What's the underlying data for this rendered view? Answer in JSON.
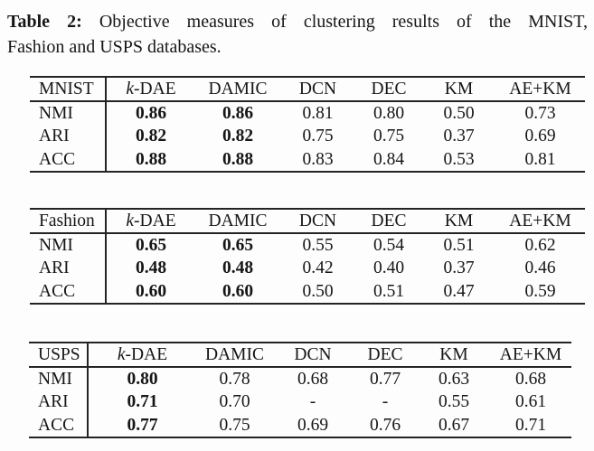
{
  "caption": {
    "label": "Table 2:",
    "line1": "Objective measures of clustering results of the MNIST,",
    "line2": "Fashion and USPS databases."
  },
  "columns": [
    "k-DAE",
    "DAMIC",
    "DCN",
    "DEC",
    "KM",
    "AE+KM"
  ],
  "metrics": [
    "NMI",
    "ARI",
    "ACC"
  ],
  "tables": [
    {
      "dataset": "MNIST",
      "rows": [
        {
          "metric": "NMI",
          "values": [
            "0.86",
            "0.86",
            "0.81",
            "0.80",
            "0.50",
            "0.73"
          ],
          "bold": [
            true,
            true,
            false,
            false,
            false,
            false
          ]
        },
        {
          "metric": "ARI",
          "values": [
            "0.82",
            "0.82",
            "0.75",
            "0.75",
            "0.37",
            "0.69"
          ],
          "bold": [
            true,
            true,
            false,
            false,
            false,
            false
          ]
        },
        {
          "metric": "ACC",
          "values": [
            "0.88",
            "0.88",
            "0.83",
            "0.84",
            "0.53",
            "0.81"
          ],
          "bold": [
            true,
            true,
            false,
            false,
            false,
            false
          ]
        }
      ]
    },
    {
      "dataset": "Fashion",
      "rows": [
        {
          "metric": "NMI",
          "values": [
            "0.65",
            "0.65",
            "0.55",
            "0.54",
            "0.51",
            "0.62"
          ],
          "bold": [
            true,
            true,
            false,
            false,
            false,
            false
          ]
        },
        {
          "metric": "ARI",
          "values": [
            "0.48",
            "0.48",
            "0.42",
            "0.40",
            "0.37",
            "0.46"
          ],
          "bold": [
            true,
            true,
            false,
            false,
            false,
            false
          ]
        },
        {
          "metric": "ACC",
          "values": [
            "0.60",
            "0.60",
            "0.50",
            "0.51",
            "0.47",
            "0.59"
          ],
          "bold": [
            true,
            true,
            false,
            false,
            false,
            false
          ]
        }
      ]
    },
    {
      "dataset": "USPS",
      "rows": [
        {
          "metric": "NMI",
          "values": [
            "0.80",
            "0.78",
            "0.68",
            "0.77",
            "0.63",
            "0.68"
          ],
          "bold": [
            true,
            false,
            false,
            false,
            false,
            false
          ]
        },
        {
          "metric": "ARI",
          "values": [
            "0.71",
            "0.70",
            "-",
            "-",
            "0.55",
            "0.61"
          ],
          "bold": [
            true,
            false,
            false,
            false,
            false,
            false
          ]
        },
        {
          "metric": "ACC",
          "values": [
            "0.77",
            "0.75",
            "0.69",
            "0.76",
            "0.67",
            "0.71"
          ],
          "bold": [
            true,
            false,
            false,
            false,
            false,
            false
          ]
        }
      ]
    }
  ],
  "colors": {
    "text": "#161616",
    "rule": "#242424",
    "background": "#fdfdfd"
  }
}
